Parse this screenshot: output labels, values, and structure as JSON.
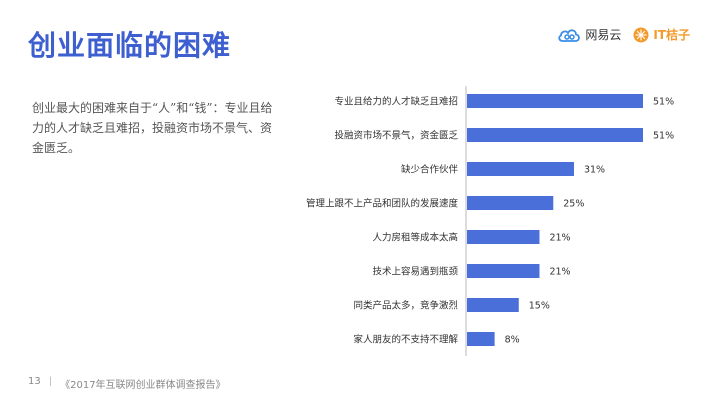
{
  "header": {
    "title": "创业面临的困难",
    "logo_netease": "网易云",
    "logo_it": "IT桔子"
  },
  "description": "创业最大的困难来自于“人”和“钱”：专业且给力的人才缺乏且难招，投融资市场不景气、资金匮乏。",
  "footer": {
    "page_number": "13",
    "separator": "|",
    "source": "《2017年互联网创业群体调查报告》"
  },
  "colors": {
    "accent": "#3d5fd0",
    "bar": "#4a6fd8",
    "logo_blue": "#3a8ee6",
    "logo_orange": "#f39a2b"
  },
  "chart_data": {
    "type": "bar",
    "orientation": "horizontal",
    "categories": [
      "专业且给力的人才缺乏且难招",
      "投融资市场不景气，资金匮乏",
      "缺少合作伙伴",
      "管理上跟不上产品和团队的发展速度",
      "人力房租等成本太高",
      "技术上容易遇到瓶颈",
      "同类产品太多，竞争激烈",
      "家人朋友的不支持不理解"
    ],
    "values": [
      51,
      51,
      31,
      25,
      21,
      21,
      15,
      8
    ],
    "value_labels": [
      "51%",
      "51%",
      "31%",
      "25%",
      "21%",
      "21%",
      "15%",
      "8%"
    ],
    "unit": "%",
    "xlim": [
      0,
      51
    ],
    "grid": false
  }
}
